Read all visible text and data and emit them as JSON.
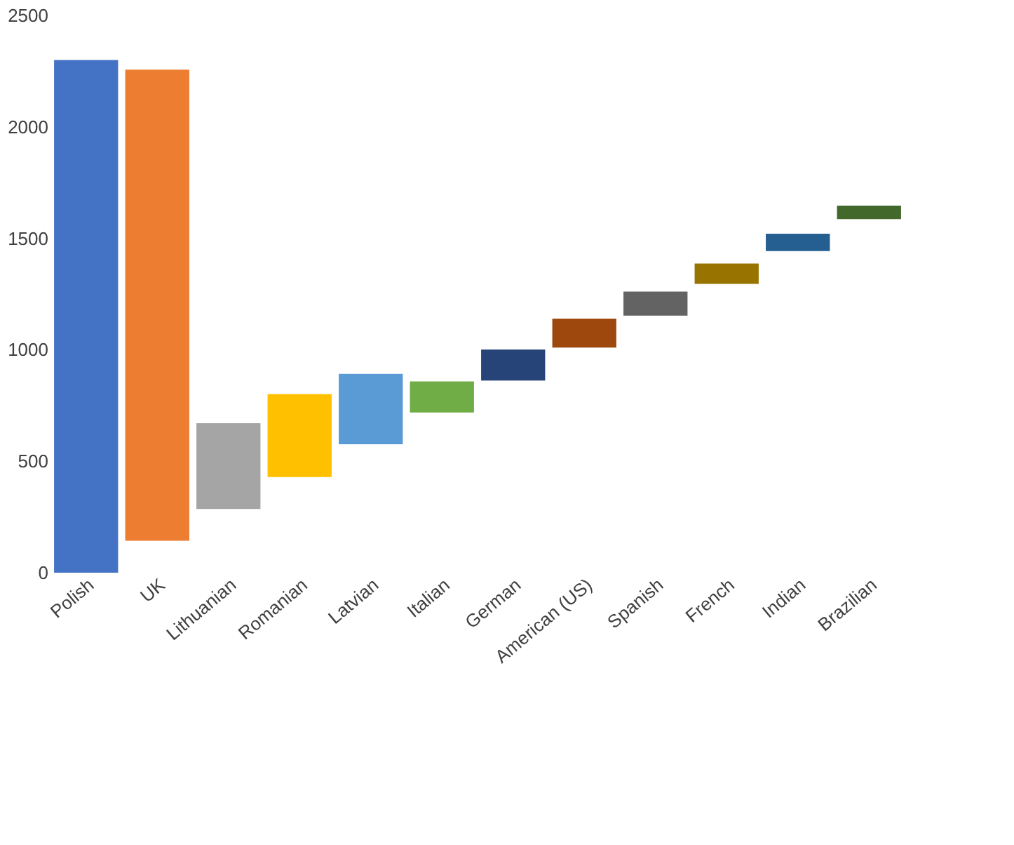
{
  "chart_data": {
    "type": "bar",
    "categories": [
      "Polish",
      "UK",
      "Lithuanian",
      "Romanian",
      "Latvian",
      "Italian",
      "German",
      "American (US)",
      "Spanish",
      "French",
      "Indian",
      "Brazilian"
    ],
    "base": [
      0,
      143,
      286,
      429,
      576,
      719,
      862,
      1010,
      1153,
      1296,
      1443,
      1586
    ],
    "values": [
      2300,
      2114,
      385,
      372,
      316,
      139,
      139,
      130,
      108,
      91,
      78,
      61
    ],
    "colors": [
      "#4472c4",
      "#ed7d31",
      "#a5a5a5",
      "#ffc000",
      "#5b9bd5",
      "#70ad47",
      "#264478",
      "#9e480e",
      "#636363",
      "#997300",
      "#255e91",
      "#43682b"
    ],
    "ylim": [
      0,
      2500
    ],
    "yticks": [
      0,
      500,
      1000,
      1500,
      2000,
      2500
    ],
    "grid": false,
    "legend": false
  }
}
